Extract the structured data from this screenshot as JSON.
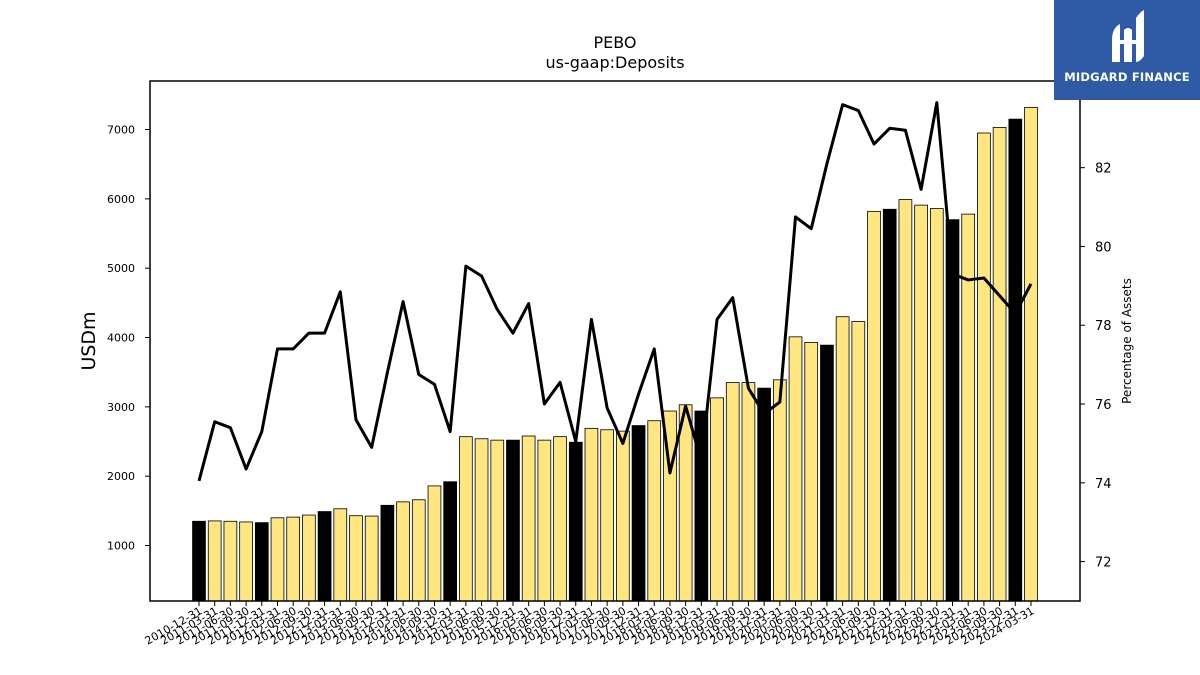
{
  "chart_data": {
    "type": "bar",
    "title": "PEBO",
    "subtitle": "us-gaap:Deposits",
    "ylabel": "USDm",
    "y2label": "Percentage of Assets",
    "ylim": [
      200,
      7700
    ],
    "y2lim": [
      71,
      84.2
    ],
    "yticks": [
      1000,
      2000,
      3000,
      4000,
      5000,
      6000,
      7000
    ],
    "y2ticks": [
      72,
      74,
      76,
      78,
      80,
      82
    ],
    "categories": [
      "2010-12-31",
      "2011-03-31",
      "2011-06-30",
      "2011-09-30",
      "2011-12-31",
      "2012-03-31",
      "2012-06-30",
      "2012-09-30",
      "2012-12-31",
      "2013-03-31",
      "2013-06-30",
      "2013-09-30",
      "2013-12-31",
      "2014-03-31",
      "2014-06-30",
      "2014-09-30",
      "2014-12-31",
      "2015-03-31",
      "2015-06-30",
      "2015-09-30",
      "2015-12-31",
      "2016-03-31",
      "2016-06-30",
      "2016-09-30",
      "2016-12-31",
      "2017-03-31",
      "2017-06-30",
      "2017-09-30",
      "2017-12-31",
      "2018-03-31",
      "2018-06-30",
      "2018-09-30",
      "2018-12-31",
      "2019-03-31",
      "2019-06-30",
      "2019-09-30",
      "2019-12-31",
      "2020-03-31",
      "2020-06-30",
      "2020-09-30",
      "2020-12-31",
      "2021-03-31",
      "2021-06-30",
      "2021-09-30",
      "2021-12-31",
      "2022-03-31",
      "2022-06-30",
      "2022-09-30",
      "2022-12-31",
      "2023-03-31",
      "2023-06-30",
      "2023-09-30",
      "2023-12-31",
      "2024-03-31"
    ],
    "highlight_label": "-12-31",
    "series": [
      {
        "kind": "bar",
        "axis": "left",
        "values": [
          1350,
          1355,
          1350,
          1340,
          1330,
          1400,
          1410,
          1440,
          1490,
          1530,
          1430,
          1425,
          1580,
          1630,
          1660,
          1860,
          1920,
          2570,
          2540,
          2520,
          2520,
          2580,
          2520,
          2570,
          2490,
          2690,
          2670,
          2650,
          2730,
          2800,
          2940,
          3030,
          2940,
          3130,
          3350,
          3350,
          3270,
          3390,
          4010,
          3930,
          3890,
          4300,
          4230,
          5820,
          5850,
          5990,
          5910,
          5860,
          5700,
          5780,
          6950,
          7030,
          7150,
          7320
        ]
      },
      {
        "kind": "line",
        "axis": "right",
        "values": [
          74.05,
          75.55,
          75.4,
          74.35,
          75.3,
          77.4,
          77.4,
          77.8,
          77.8,
          78.85,
          75.6,
          74.9,
          76.8,
          78.6,
          76.75,
          76.5,
          75.3,
          79.5,
          79.25,
          78.4,
          77.8,
          78.55,
          76.0,
          76.55,
          75.05,
          78.15,
          75.9,
          75.0,
          76.25,
          77.4,
          74.25,
          75.95,
          74.55,
          78.15,
          78.7,
          76.4,
          75.75,
          76.05,
          80.75,
          80.45,
          82.1,
          83.6,
          83.45,
          82.6,
          83.0,
          82.95,
          81.45,
          83.65,
          79.3,
          79.15,
          79.2,
          78.75,
          78.3,
          79.05
        ]
      }
    ],
    "colors": {
      "bar_default": "#ffe680",
      "bar_highlight": "#000000",
      "line": "#000000",
      "axis": "#000000",
      "logo_bg": "#2e5aa6"
    }
  },
  "logo": {
    "text": "MIDGARD FINANCE",
    "icon": "midgard-logo-icon"
  }
}
